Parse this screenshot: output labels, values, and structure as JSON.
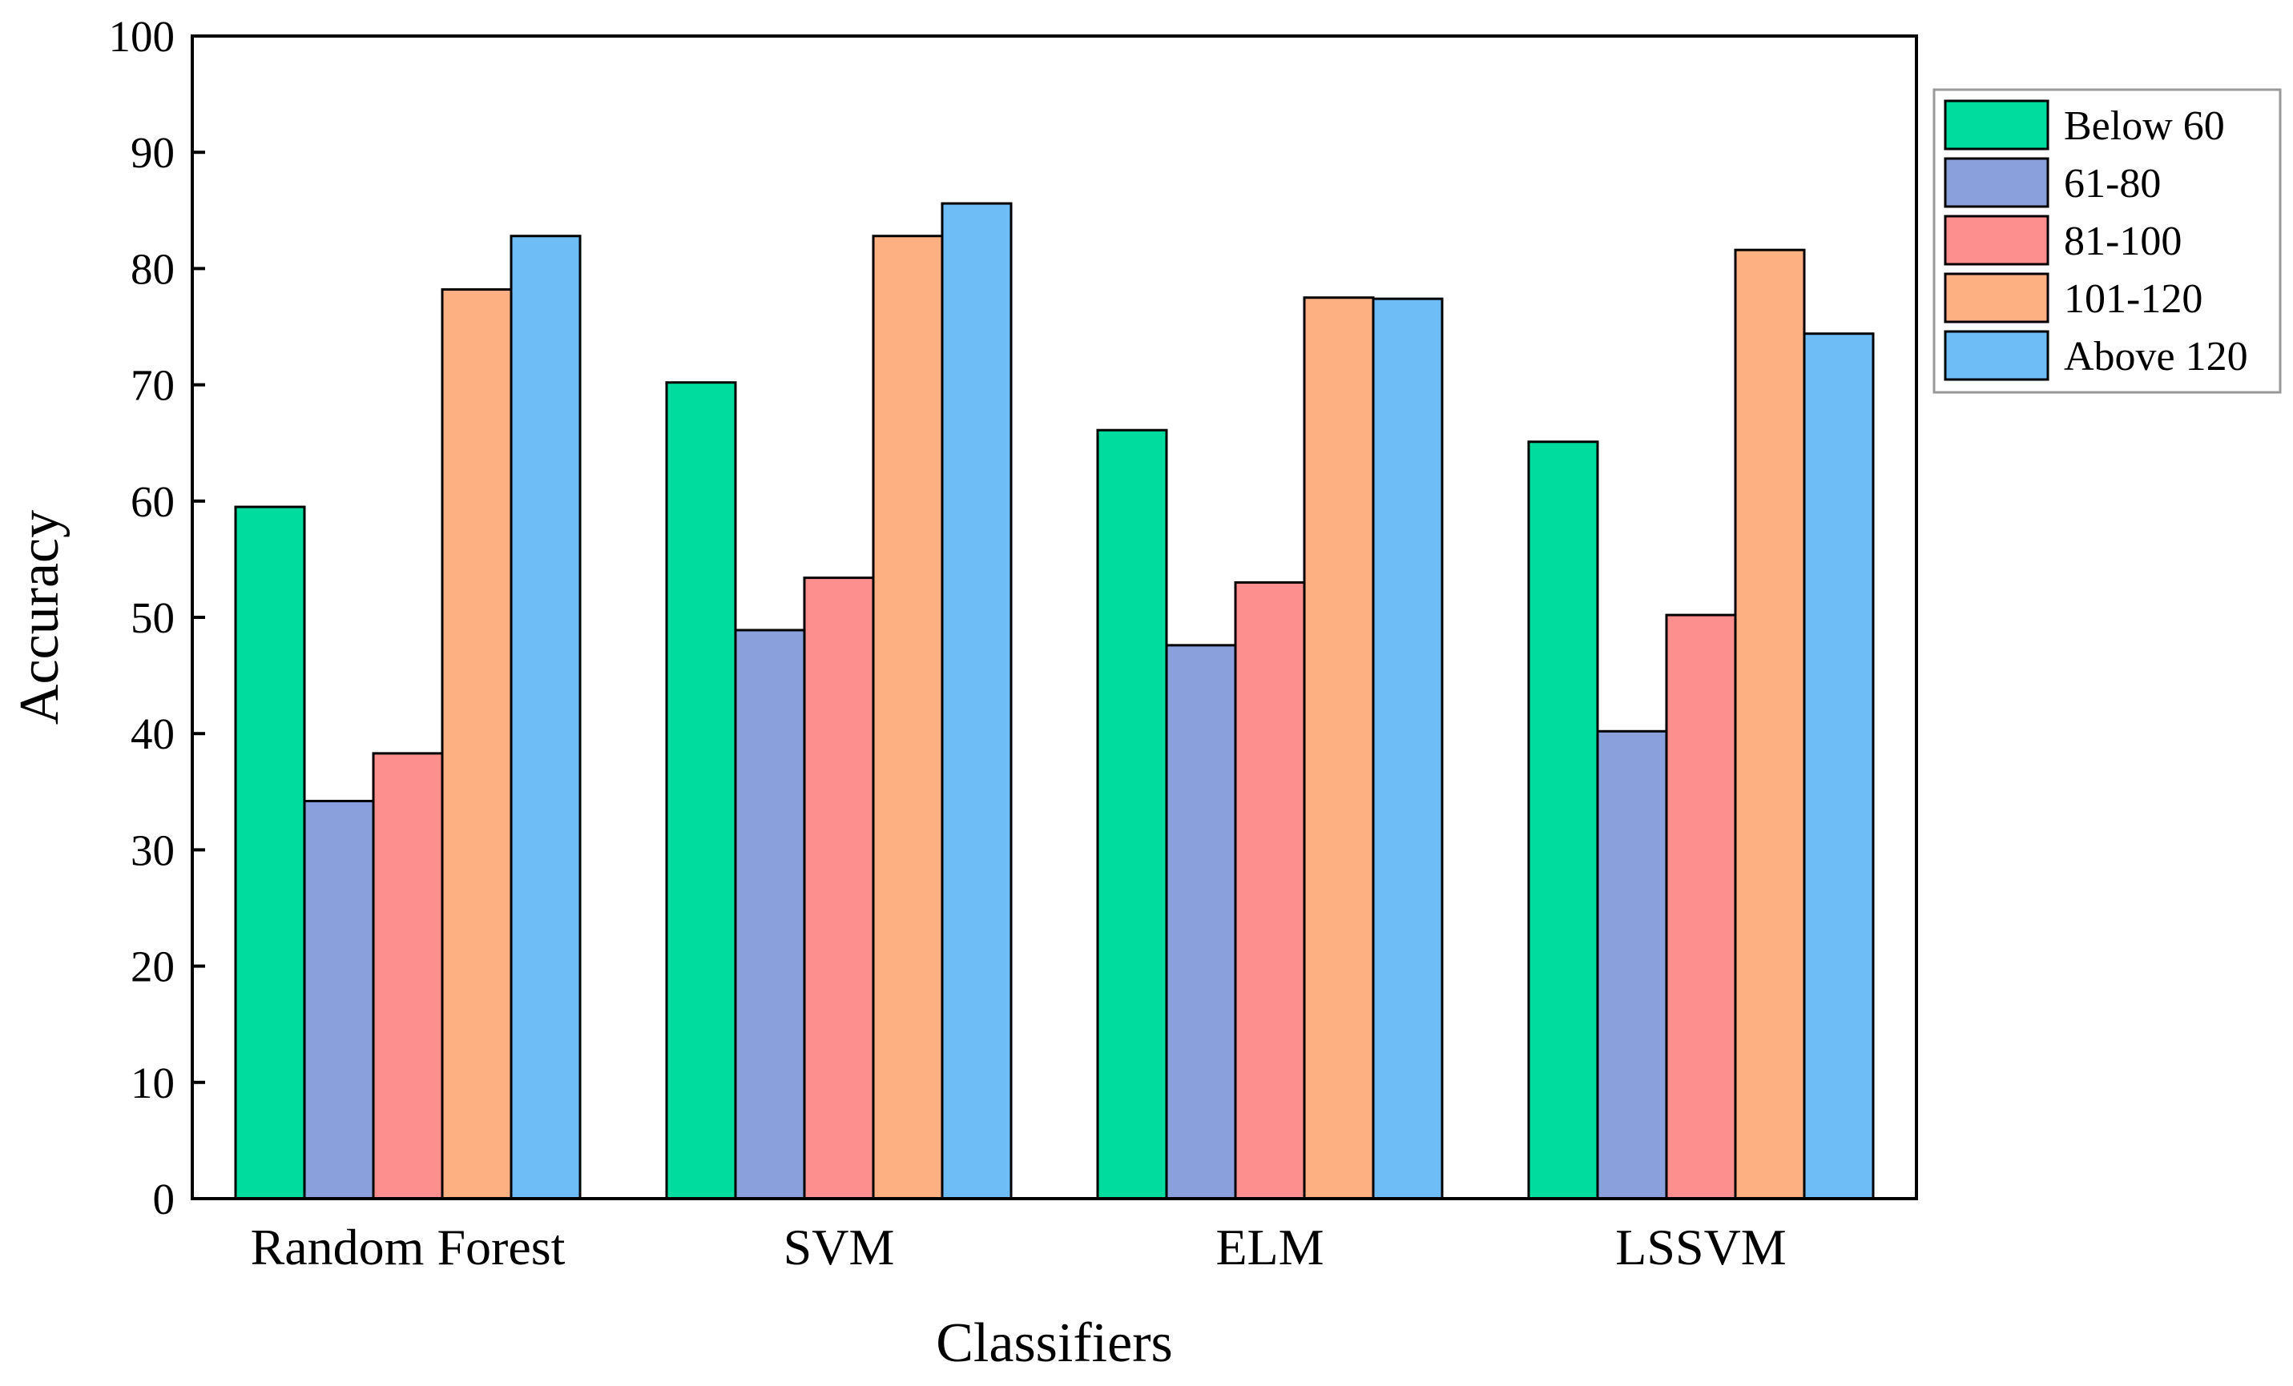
{
  "chart_data": {
    "type": "bar",
    "title": "",
    "xlabel": "Classifiers",
    "ylabel": "Accuracy",
    "ylim": [
      0,
      100
    ],
    "yticks": [
      0,
      10,
      20,
      30,
      40,
      50,
      60,
      70,
      80,
      90,
      100
    ],
    "ytick_labels": [
      "0",
      "10",
      "20",
      "30",
      "40",
      "50",
      "60",
      "70",
      "80",
      "90",
      "100"
    ],
    "categories": [
      "Random Forest",
      "SVM",
      "ELM",
      "LSSVM"
    ],
    "legend_position": "outside-top-right",
    "grid": false,
    "series": [
      {
        "name": "Below 60",
        "color": "#00dc9e",
        "values": [
          59.5,
          70.2,
          66.1,
          65.1
        ]
      },
      {
        "name": "61-80",
        "color": "#8aa0dc",
        "values": [
          34.2,
          48.9,
          47.6,
          40.2
        ]
      },
      {
        "name": "81-100",
        "color": "#fe8f8f",
        "values": [
          38.3,
          53.4,
          53.0,
          50.2
        ]
      },
      {
        "name": "101-120",
        "color": "#fdb183",
        "values": [
          78.2,
          82.8,
          77.5,
          81.6
        ]
      },
      {
        "name": "Above 120",
        "color": "#6fbdf6",
        "values": [
          82.8,
          85.6,
          77.4,
          74.4
        ]
      }
    ]
  }
}
